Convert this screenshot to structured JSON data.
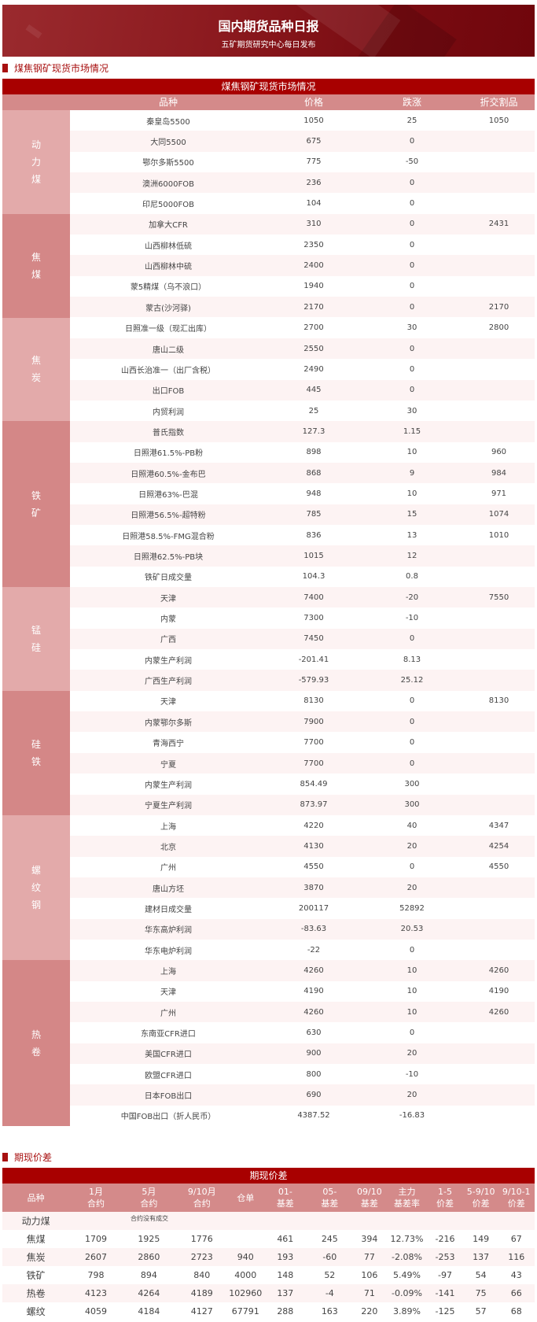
{
  "banner": {
    "title": "国内期货品种日报",
    "subtitle": "五矿期货研究中心每日发布"
  },
  "spot": {
    "section_title": "煤焦钢矿现货市场情况",
    "table_title": "煤焦钢矿现货市场情况",
    "columns": [
      "品种",
      "价格",
      "跌涨",
      "折交割品"
    ],
    "groups": [
      {
        "name": "动力煤",
        "rows": [
          [
            "秦皇岛5500",
            "1050",
            "25",
            "1050"
          ],
          [
            "大同5500",
            "675",
            "0",
            ""
          ],
          [
            "鄂尔多斯5500",
            "775",
            "-50",
            ""
          ],
          [
            "澳洲6000FOB",
            "236",
            "0",
            ""
          ],
          [
            "印尼5000FOB",
            "104",
            "0",
            ""
          ]
        ]
      },
      {
        "name": "焦煤",
        "rows": [
          [
            "加拿大CFR",
            "310",
            "0",
            "2431"
          ],
          [
            "山西柳林低硫",
            "2350",
            "0",
            ""
          ],
          [
            "山西柳林中硫",
            "2400",
            "0",
            ""
          ],
          [
            "蒙5精煤（乌不浪口）",
            "1940",
            "0",
            ""
          ],
          [
            "蒙古(沙河驿)",
            "2170",
            "0",
            "2170"
          ]
        ]
      },
      {
        "name": "焦炭",
        "rows": [
          [
            "日照准一级（现汇出库）",
            "2700",
            "30",
            "2800"
          ],
          [
            "唐山二级",
            "2550",
            "0",
            ""
          ],
          [
            "山西长治准一（出厂含税）",
            "2490",
            "0",
            ""
          ],
          [
            "出口FOB",
            "445",
            "0",
            ""
          ],
          [
            "内贸利润",
            "25",
            "30",
            ""
          ]
        ]
      },
      {
        "name": "铁矿",
        "rows": [
          [
            "普氏指数",
            "127.3",
            "1.15",
            ""
          ],
          [
            "日照港61.5%-PB粉",
            "898",
            "10",
            "960"
          ],
          [
            "日照港60.5%-金布巴",
            "868",
            "9",
            "984"
          ],
          [
            "日照港63%-巴混",
            "948",
            "10",
            "971"
          ],
          [
            "日照港56.5%-超特粉",
            "785",
            "15",
            "1074"
          ],
          [
            "日照港58.5%-FMG混合粉",
            "836",
            "13",
            "1010"
          ],
          [
            "日照港62.5%-PB块",
            "1015",
            "12",
            ""
          ],
          [
            "铁矿日成交量",
            "104.3",
            "0.8",
            ""
          ]
        ]
      },
      {
        "name": "锰硅",
        "rows": [
          [
            "天津",
            "7400",
            "-20",
            "7550"
          ],
          [
            "内蒙",
            "7300",
            "-10",
            ""
          ],
          [
            "广西",
            "7450",
            "0",
            ""
          ],
          [
            "内蒙生产利润",
            "-201.41",
            "8.13",
            ""
          ],
          [
            "广西生产利润",
            "-579.93",
            "25.12",
            ""
          ]
        ]
      },
      {
        "name": "硅铁",
        "rows": [
          [
            "天津",
            "8130",
            "0",
            "8130"
          ],
          [
            "内蒙鄂尔多斯",
            "7900",
            "0",
            ""
          ],
          [
            "青海西宁",
            "7700",
            "0",
            ""
          ],
          [
            "宁夏",
            "7700",
            "0",
            ""
          ],
          [
            "内蒙生产利润",
            "854.49",
            "300",
            ""
          ],
          [
            "宁夏生产利润",
            "873.97",
            "300",
            ""
          ]
        ]
      },
      {
        "name": "螺纹钢",
        "rows": [
          [
            "上海",
            "4220",
            "40",
            "4347"
          ],
          [
            "北京",
            "4130",
            "20",
            "4254"
          ],
          [
            "广州",
            "4550",
            "0",
            "4550"
          ],
          [
            "唐山方坯",
            "3870",
            "20",
            ""
          ],
          [
            "建材日成交量",
            "200117",
            "52892",
            ""
          ],
          [
            "华东高炉利润",
            "-83.63",
            "20.53",
            ""
          ],
          [
            "华东电炉利润",
            "-22",
            "0",
            ""
          ]
        ]
      },
      {
        "name": "热卷",
        "rows": [
          [
            "上海",
            "4260",
            "10",
            "4260"
          ],
          [
            "天津",
            "4190",
            "10",
            "4190"
          ],
          [
            "广州",
            "4260",
            "10",
            "4260"
          ],
          [
            "东南亚CFR进口",
            "630",
            "0",
            ""
          ],
          [
            "美国CFR进口",
            "900",
            "20",
            ""
          ],
          [
            "欧盟CFR进口",
            "800",
            "-10",
            ""
          ],
          [
            "日本FOB出口",
            "690",
            "20",
            ""
          ],
          [
            "中国FOB出口（折人民币）",
            "4387.52",
            "-16.83",
            ""
          ]
        ]
      }
    ]
  },
  "basis": {
    "section_title": "期现价差",
    "table_title": "期现价差",
    "columns": [
      [
        "品种"
      ],
      [
        "1月",
        "合约"
      ],
      [
        "5月",
        "合约"
      ],
      [
        "9/10月",
        "合约"
      ],
      [
        "仓单"
      ],
      [
        "01-",
        "基差"
      ],
      [
        "05-",
        "基差"
      ],
      [
        "09/10",
        "基差"
      ],
      [
        "主力",
        "基差率"
      ],
      [
        "1-5",
        "价差"
      ],
      [
        "5-9/10",
        "价差"
      ],
      [
        "9/10-1",
        "价差"
      ]
    ],
    "no_trade_note": "合约没有成交",
    "rows": [
      [
        "动力煤",
        "",
        "",
        "",
        "",
        "",
        "",
        "",
        "",
        "",
        "",
        ""
      ],
      [
        "焦煤",
        "1709",
        "1925",
        "1776",
        "",
        "461",
        "245",
        "394",
        "12.73%",
        "-216",
        "149",
        "67"
      ],
      [
        "焦炭",
        "2607",
        "2860",
        "2723",
        "940",
        "193",
        "-60",
        "77",
        "-2.08%",
        "-253",
        "137",
        "116"
      ],
      [
        "铁矿",
        "798",
        "894",
        "840",
        "4000",
        "148",
        "52",
        "106",
        "5.49%",
        "-97",
        "54",
        "43"
      ],
      [
        "热卷",
        "4123",
        "4264",
        "4189",
        "102960",
        "137",
        "-4",
        "71",
        "-0.09%",
        "-141",
        "75",
        "66"
      ],
      [
        "螺纹",
        "4059",
        "4184",
        "4127",
        "67791",
        "288",
        "163",
        "220",
        "3.89%",
        "-125",
        "57",
        "68"
      ]
    ]
  },
  "colors": {
    "accent": "#a80000",
    "header": "#d48a8a",
    "group_light": "#e3aaaa",
    "group_dark": "#d48787",
    "row_alt": "#fdf3f3"
  }
}
